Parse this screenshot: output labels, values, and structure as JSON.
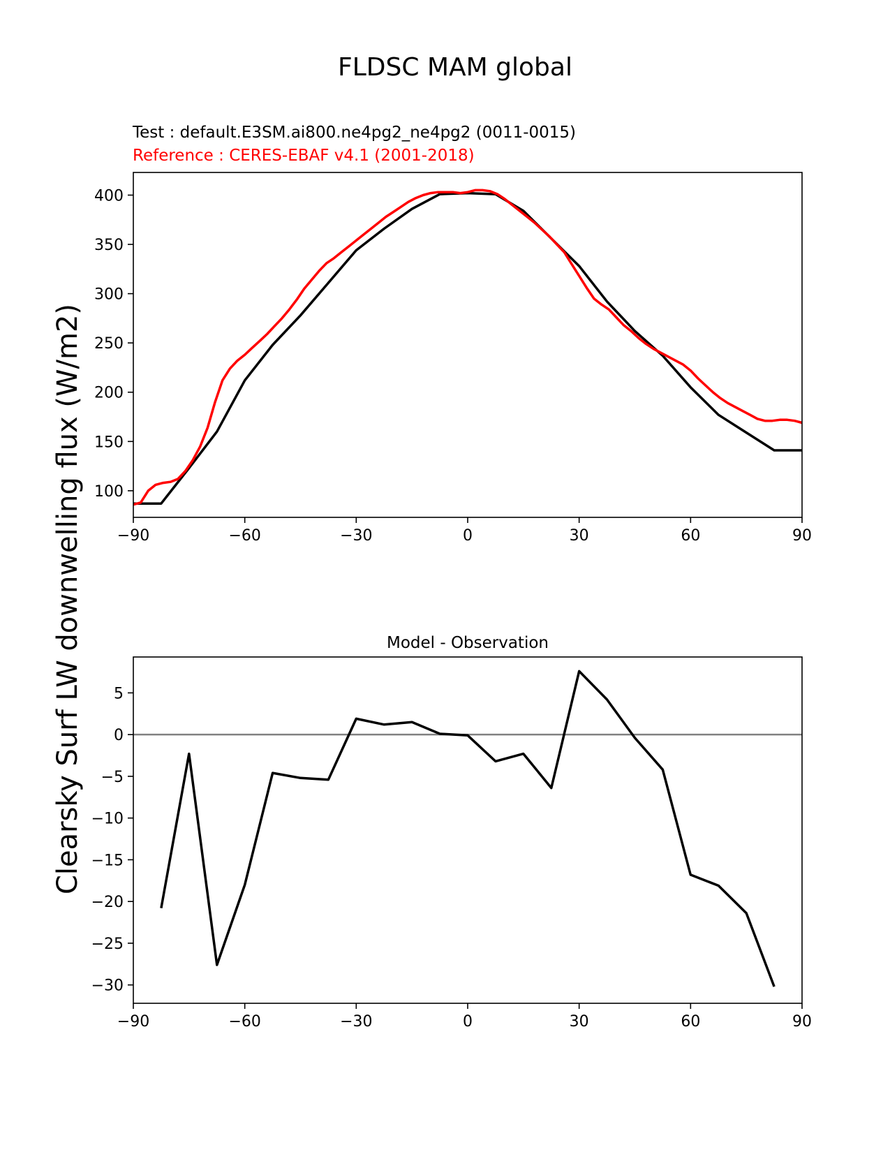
{
  "figure": {
    "title": "FLDSC MAM global",
    "test_label": "Test : default.E3SM.ai800.ne4pg2_ne4pg2 (0011-0015)",
    "reference_label": "Reference : CERES-EBAF v4.1 (2001-2018)",
    "ylabel": "Clearsky Surf LW downwelling flux (W/m2)"
  },
  "colors": {
    "test": "#000000",
    "reference": "#ff0000",
    "zero_line": "#808080",
    "axes": "#000000"
  },
  "chart_data": [
    {
      "type": "line",
      "title": "",
      "xlabel": "",
      "ylabel": "Clearsky Surf LW downwelling flux (W/m2)",
      "xlim": [
        -90,
        90
      ],
      "ylim": [
        73,
        423
      ],
      "xticks": [
        -90,
        -60,
        -30,
        0,
        30,
        60,
        90
      ],
      "yticks": [
        100,
        150,
        200,
        250,
        300,
        350,
        400
      ],
      "grid": false,
      "series": [
        {
          "name": "Test : default.E3SM.ai800.ne4pg2_ne4pg2 (0011-0015)",
          "color": "#000000",
          "x": [
            -90,
            -82.5,
            -75,
            -67.5,
            -60,
            -52.5,
            -45,
            -37.5,
            -30,
            -22.5,
            -15,
            -7.5,
            0,
            7.5,
            15,
            22.5,
            30,
            37.5,
            45,
            52.5,
            60,
            67.5,
            75,
            82.5,
            90
          ],
          "y": [
            87,
            87,
            123,
            160,
            212,
            248,
            278,
            311,
            344,
            366,
            386,
            401,
            402,
            401,
            384,
            356,
            328,
            292,
            262,
            237,
            205,
            177,
            159,
            141,
            141
          ]
        },
        {
          "name": "Reference : CERES-EBAF v4.1 (2001-2018)",
          "color": "#ff0000",
          "x": [
            -90,
            -88,
            -86,
            -84,
            -82,
            -80,
            -78,
            -76,
            -74,
            -72,
            -70,
            -68,
            -66,
            -64,
            -62,
            -60,
            -58,
            -56,
            -54,
            -52,
            -50,
            -48,
            -46,
            -44,
            -42,
            -40,
            -38,
            -36,
            -34,
            -32,
            -30,
            -28,
            -26,
            -24,
            -22,
            -20,
            -18,
            -16,
            -14,
            -12,
            -10,
            -8,
            -6,
            -4,
            -2,
            0,
            2,
            4,
            6,
            8,
            10,
            12,
            14,
            16,
            18,
            20,
            22,
            24,
            26,
            28,
            30,
            32,
            34,
            36,
            38,
            40,
            42,
            44,
            46,
            48,
            50,
            52,
            54,
            56,
            58,
            60,
            62,
            64,
            66,
            68,
            70,
            72,
            74,
            76,
            78,
            80,
            82,
            84,
            86,
            88,
            90
          ],
          "y": [
            86,
            88,
            100,
            106,
            108,
            109,
            112,
            120,
            131,
            145,
            164,
            190,
            212,
            224,
            232,
            238,
            245,
            252,
            259,
            267,
            275,
            284,
            294,
            305,
            314,
            323,
            331,
            336,
            342,
            348,
            354,
            360,
            366,
            372,
            378,
            383,
            388,
            393,
            397,
            400,
            402,
            403,
            403,
            403,
            402,
            403,
            405,
            405,
            404,
            401,
            396,
            390,
            384,
            378,
            372,
            365,
            358,
            350,
            342,
            330,
            318,
            306,
            295,
            289,
            284,
            276,
            268,
            262,
            255,
            249,
            244,
            240,
            236,
            232,
            228,
            222,
            214,
            207,
            200,
            194,
            189,
            185,
            181,
            177,
            173,
            171,
            171,
            172,
            172,
            171,
            169
          ]
        }
      ]
    },
    {
      "type": "line",
      "title": "Model - Observation",
      "xlabel": "",
      "ylabel": "Clearsky Surf LW downwelling flux (W/m2)",
      "xlim": [
        -90,
        90
      ],
      "ylim": [
        -32.2,
        9.3
      ],
      "xticks": [
        -90,
        -60,
        -30,
        0,
        30,
        60,
        90
      ],
      "yticks": [
        5,
        0,
        -5,
        -10,
        -15,
        -20,
        -25,
        -30
      ],
      "grid": false,
      "reference_line": 0,
      "series": [
        {
          "name": "",
          "color": "#000000",
          "x": [
            -82.5,
            -75,
            -67.5,
            -60,
            -52.5,
            -45,
            -37.5,
            -30,
            -22.5,
            -15,
            -7.5,
            0,
            7.5,
            15,
            22.5,
            30,
            37.5,
            45,
            52.5,
            60,
            67.5,
            75,
            82.5
          ],
          "y": [
            -20.8,
            -2.3,
            -27.6,
            -18.0,
            -4.6,
            -5.2,
            -5.4,
            1.9,
            1.2,
            1.5,
            0.1,
            -0.1,
            -3.2,
            -2.3,
            -6.4,
            7.6,
            4.2,
            -0.4,
            -4.2,
            -16.8,
            -18.1,
            -21.4,
            -30.2
          ]
        }
      ]
    }
  ]
}
